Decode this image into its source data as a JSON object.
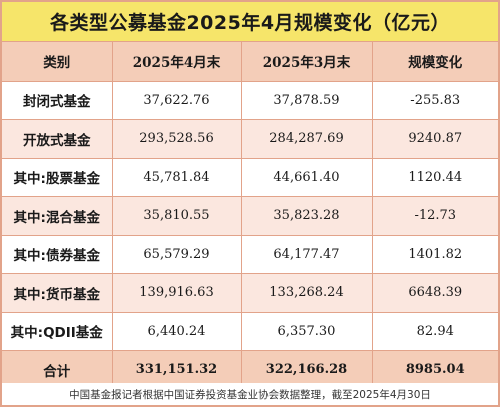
{
  "title": "各类型公募基金2025年4月规模变化（亿元）",
  "headers": [
    "类别",
    "2025年4月末",
    "2025年3月末",
    "规模变化"
  ],
  "rows": [
    [
      "封闭式基金",
      "37,622.76",
      "37,878.59",
      "-255.83"
    ],
    [
      "开放式基金",
      "293,528.56",
      "284,287.69",
      "9240.87"
    ],
    [
      "其中:股票基金",
      "45,781.84",
      "44,661.40",
      "1120.44"
    ],
    [
      "其中:混合基金",
      "35,810.55",
      "35,823.28",
      "-12.73"
    ],
    [
      "其中:债券基金",
      "65,579.29",
      "64,177.47",
      "1401.82"
    ],
    [
      "其中:货币基金",
      "139,916.63",
      "133,268.24",
      "6648.39"
    ],
    [
      "其中:QDII基金",
      "6,440.24",
      "6,357.30",
      "82.94"
    ],
    [
      "合计",
      "331,151.32",
      "322,166.28",
      "8985.04"
    ]
  ],
  "footer": "中国基金报记者根据中国证券投资基金业协会数据整理，截至2025年4月30日",
  "colors": {
    "title_bg": "#f6e56a",
    "header_bg": "#f4cdb8",
    "stripe_bg": "#fbe7df",
    "border": "#e2a38a"
  }
}
